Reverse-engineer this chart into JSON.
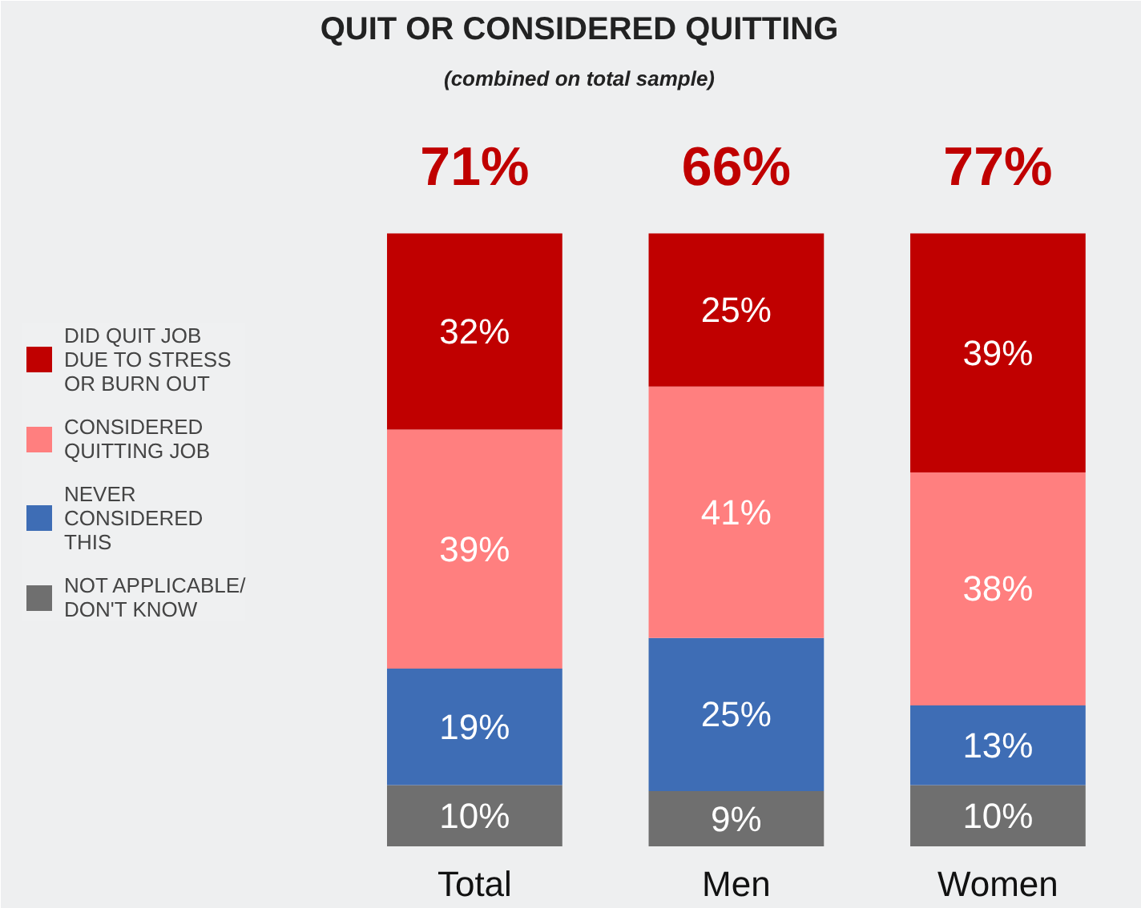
{
  "chart_data": {
    "type": "bar",
    "stacked": true,
    "title": "QUIT OR CONSIDERED QUITTING",
    "subtitle": "(combined on total sample)",
    "categories": [
      "Total",
      "Men",
      "Women"
    ],
    "series": [
      {
        "name": "NOT APPLICABLE/\nDON'T KNOW",
        "color": "#6f6f6f",
        "values": [
          10,
          9,
          10
        ],
        "value_labels": [
          "10%",
          "9%",
          "10%"
        ]
      },
      {
        "name": "NEVER\nCONSIDERED\nTHIS",
        "color": "#3e6db5",
        "values": [
          19,
          25,
          13
        ],
        "value_labels": [
          "19%",
          "25%",
          "13%"
        ]
      },
      {
        "name": "CONSIDERED\nQUITTING JOB",
        "color": "#ff7f7f",
        "values": [
          39,
          41,
          38
        ],
        "value_labels": [
          "39%",
          "41%",
          "38%"
        ]
      },
      {
        "name": "DID QUIT JOB\nDUE TO STRESS\nOR BURN OUT",
        "color": "#c00000",
        "values": [
          32,
          25,
          39
        ],
        "value_labels": [
          "32%",
          "25%",
          "39%"
        ]
      }
    ],
    "annotations": [
      {
        "text": "71%",
        "x": "Total",
        "y": 100
      },
      {
        "text": "66%",
        "x": "Men",
        "y": 100
      },
      {
        "text": "77%",
        "x": "Women",
        "y": 100
      }
    ],
    "legend": "left",
    "grid": false
  }
}
